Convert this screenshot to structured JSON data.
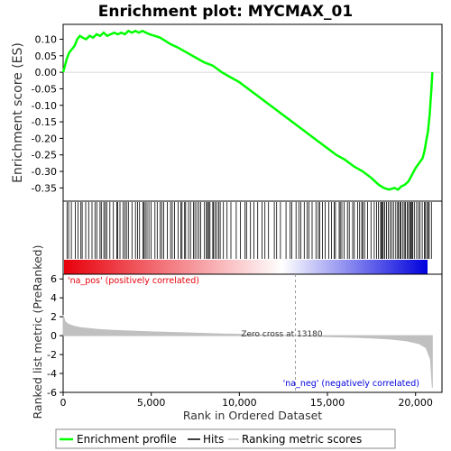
{
  "chart_data": {
    "type": "line",
    "title": "Enrichment plot: MYCMAX_01",
    "xlabel": "Rank in Ordered Dataset",
    "xlim": [
      0,
      21500
    ],
    "x_ticks": [
      {
        "value": 0,
        "label": "0"
      },
      {
        "value": 5000,
        "label": "5,000"
      },
      {
        "value": 10000,
        "label": "10,000"
      },
      {
        "value": 15000,
        "label": "15,000"
      },
      {
        "value": 20000,
        "label": "20,000"
      }
    ],
    "es_panel": {
      "ylabel": "Enrichment score (ES)",
      "ylim": [
        -0.39,
        0.145
      ],
      "y_ticks": [
        {
          "value": 0.1,
          "label": "0.10"
        },
        {
          "value": 0.05,
          "label": "0.05"
        },
        {
          "value": 0.0,
          "label": "0.00"
        },
        {
          "value": -0.05,
          "label": "-0.05"
        },
        {
          "value": -0.1,
          "label": "-0.10"
        },
        {
          "value": -0.15,
          "label": "-0.15"
        },
        {
          "value": -0.2,
          "label": "-0.20"
        },
        {
          "value": -0.25,
          "label": "-0.25"
        },
        {
          "value": -0.3,
          "label": "-0.30"
        },
        {
          "value": -0.35,
          "label": "-0.35"
        }
      ],
      "series": [
        {
          "name": "Enrichment profile",
          "color": "#00ff00",
          "x": [
            0,
            100,
            200,
            350,
            500,
            650,
            800,
            950,
            1100,
            1300,
            1500,
            1700,
            1900,
            2100,
            2300,
            2500,
            2700,
            2900,
            3100,
            3300,
            3500,
            3700,
            3900,
            4100,
            4300,
            4500,
            4700,
            4900,
            5200,
            5500,
            5800,
            6100,
            6500,
            7000,
            7500,
            8000,
            8500,
            9000,
            9500,
            10000,
            10500,
            11000,
            11500,
            12000,
            12500,
            13000,
            13500,
            14000,
            14500,
            15000,
            15500,
            16000,
            16500,
            17000,
            17500,
            17900,
            18200,
            18500,
            18800,
            19000,
            19200,
            19400,
            19600,
            19800,
            20000,
            20200,
            20400,
            20500,
            20600,
            20700,
            20800,
            20850,
            20900,
            20950
          ],
          "y": [
            0.0,
            0.02,
            0.04,
            0.06,
            0.07,
            0.08,
            0.1,
            0.11,
            0.105,
            0.1,
            0.11,
            0.105,
            0.115,
            0.11,
            0.12,
            0.11,
            0.115,
            0.12,
            0.115,
            0.12,
            0.115,
            0.125,
            0.12,
            0.125,
            0.12,
            0.125,
            0.12,
            0.115,
            0.11,
            0.105,
            0.095,
            0.085,
            0.075,
            0.06,
            0.045,
            0.03,
            0.02,
            0.0,
            -0.015,
            -0.03,
            -0.05,
            -0.07,
            -0.09,
            -0.11,
            -0.13,
            -0.15,
            -0.17,
            -0.19,
            -0.21,
            -0.23,
            -0.25,
            -0.265,
            -0.285,
            -0.3,
            -0.32,
            -0.34,
            -0.35,
            -0.355,
            -0.35,
            -0.355,
            -0.345,
            -0.34,
            -0.33,
            -0.31,
            -0.29,
            -0.275,
            -0.26,
            -0.24,
            -0.21,
            -0.18,
            -0.13,
            -0.09,
            -0.05,
            0.0
          ]
        }
      ]
    },
    "hits_panel": {
      "series_name": "Hits",
      "color": "#000000",
      "gradient_colors": [
        "#e8000b",
        "#ffffff",
        "#0000dd"
      ]
    },
    "metric_panel": {
      "ylabel": "Ranked list metric (PreRanked)",
      "ylim": [
        -6,
        6.5
      ],
      "y_ticks": [
        {
          "value": 6,
          "label": "6"
        },
        {
          "value": 4,
          "label": "4"
        },
        {
          "value": 2,
          "label": "2"
        },
        {
          "value": 0,
          "label": "0"
        },
        {
          "value": -2,
          "label": "-2"
        },
        {
          "value": -4,
          "label": "-4"
        },
        {
          "value": -6,
          "label": "-6"
        }
      ],
      "series_name": "Ranking metric scores",
      "color": "#c0c0c0",
      "x": [
        0,
        100,
        300,
        600,
        1000,
        2000,
        3000,
        5000,
        7000,
        9000,
        11000,
        13180,
        15000,
        17000,
        18500,
        19500,
        20200,
        20600,
        20850,
        20950
      ],
      "y": [
        2.2,
        1.5,
        1.2,
        1.0,
        0.85,
        0.65,
        0.55,
        0.4,
        0.3,
        0.18,
        0.08,
        0.0,
        -0.1,
        -0.2,
        -0.35,
        -0.55,
        -0.85,
        -1.3,
        -2.5,
        -5.5
      ],
      "zero_cross_rank": 13180,
      "zero_cross_label": "Zero cross at 13180",
      "pos_label": "'na_pos' (positively correlated)",
      "neg_label": "'na_neg' (negatively correlated)",
      "pos_color": "#e8000b",
      "neg_color": "#0000dd"
    },
    "legend": {
      "placement": "bottom",
      "entries": [
        {
          "label": "Enrichment profile",
          "color": "#00ff00"
        },
        {
          "label": "Hits",
          "color": "#000000"
        },
        {
          "label": "Ranking metric scores",
          "color": "#c0c0c0"
        }
      ]
    }
  }
}
